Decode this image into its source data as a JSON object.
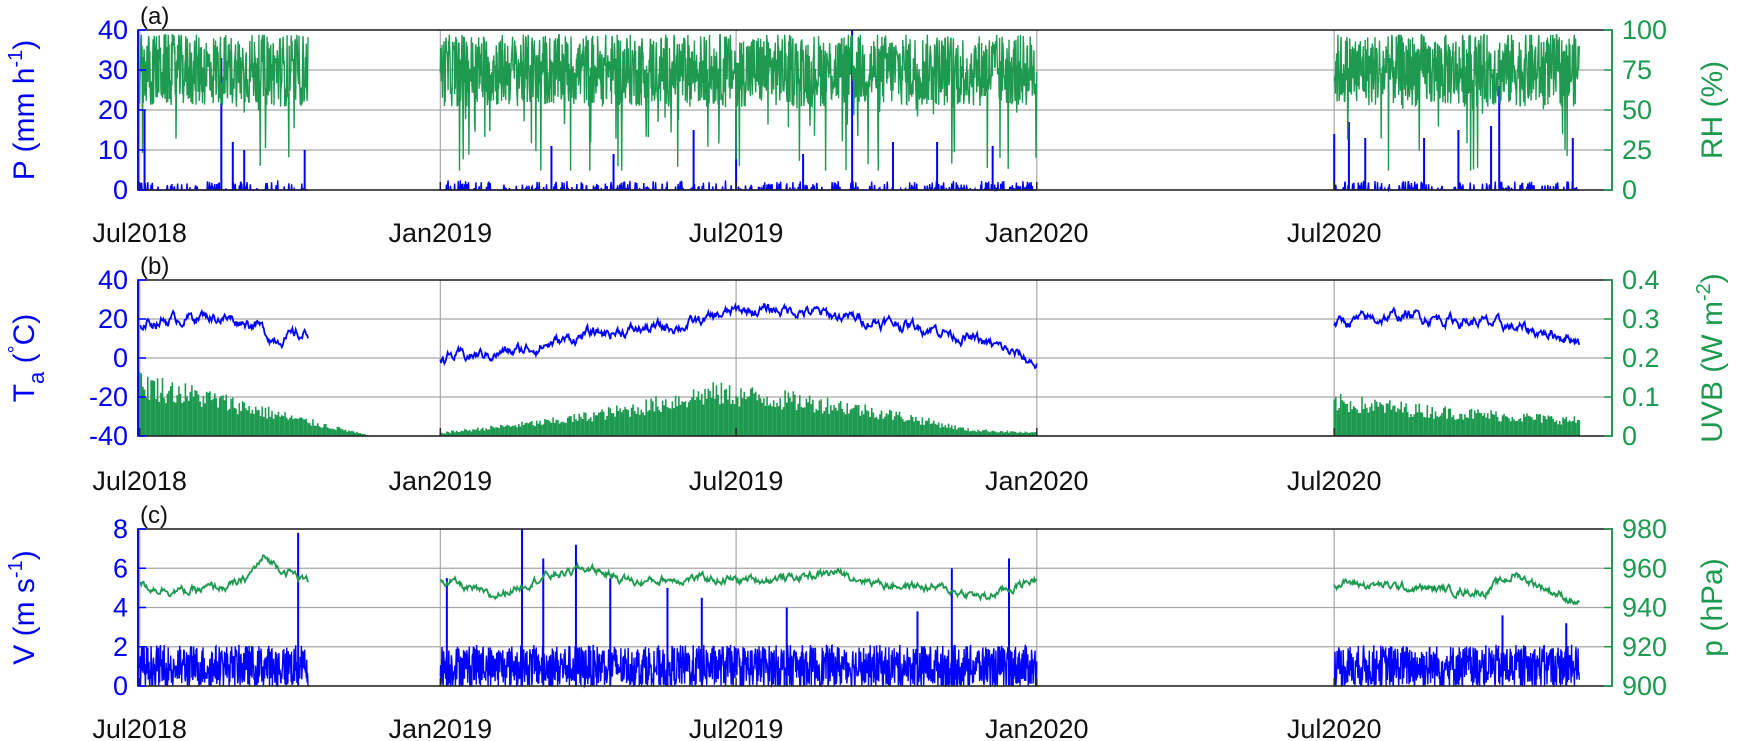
{
  "colors": {
    "left_series": "#0000ff",
    "right_series": "#1e9a50",
    "grid": "#a6a6a6",
    "axes": "#262626"
  },
  "x_axis": {
    "ticks": [
      {
        "date": "2018-07-01",
        "label": "Jul2018"
      },
      {
        "date": "2019-01-01",
        "label": "Jan2019"
      },
      {
        "date": "2019-07-01",
        "label": "Jul2019"
      },
      {
        "date": "2020-01-01",
        "label": "Jan2020"
      },
      {
        "date": "2020-07-01",
        "label": "Jul2020"
      }
    ],
    "range": [
      "2018-06-30",
      "2020-12-18"
    ]
  },
  "chart_data": [
    {
      "type": "line",
      "panel_label": "(a)",
      "grid": true,
      "left_axis": {
        "label_main": "P (mm h",
        "label_sup": "-1",
        "label_end": ")",
        "ylim": [
          0,
          40
        ],
        "ticks": [
          "0",
          "10",
          "20",
          "30",
          "40"
        ]
      },
      "right_axis": {
        "label": "RH (%)",
        "ylim": [
          0,
          100
        ],
        "ticks": [
          "0",
          "25",
          "50",
          "75",
          "100"
        ]
      },
      "data_segments": [
        [
          "2018-07-01",
          "2018-10-12"
        ],
        [
          "2019-01-01",
          "2020-01-01"
        ],
        [
          "2020-07-01",
          "2020-11-28"
        ]
      ],
      "series": [
        {
          "axis": "left",
          "style": "spikes",
          "base": 0.5,
          "variation": 2,
          "spike_peaks": [
            {
              "x": "2018-07-04",
              "y": 20
            },
            {
              "x": "2018-08-20",
              "y": 33
            },
            {
              "x": "2018-08-27",
              "y": 12
            },
            {
              "x": "2018-09-03",
              "y": 10
            },
            {
              "x": "2018-10-10",
              "y": 10
            },
            {
              "x": "2019-03-10",
              "y": 11
            },
            {
              "x": "2019-04-17",
              "y": 9
            },
            {
              "x": "2019-06-05",
              "y": 15
            },
            {
              "x": "2019-07-01",
              "y": 20
            },
            {
              "x": "2019-08-11",
              "y": 9
            },
            {
              "x": "2019-09-10",
              "y": 40
            },
            {
              "x": "2019-10-05",
              "y": 12
            },
            {
              "x": "2019-11-01",
              "y": 12
            },
            {
              "x": "2019-12-05",
              "y": 11
            },
            {
              "x": "2020-07-01",
              "y": 14
            },
            {
              "x": "2020-07-10",
              "y": 17
            },
            {
              "x": "2020-07-20",
              "y": 13
            },
            {
              "x": "2020-08-25",
              "y": 13
            },
            {
              "x": "2020-09-15",
              "y": 15
            },
            {
              "x": "2020-10-05",
              "y": 16
            },
            {
              "x": "2020-10-10",
              "y": 26
            },
            {
              "x": "2020-11-24",
              "y": 13
            }
          ]
        },
        {
          "axis": "right",
          "style": "noisy",
          "base": 75,
          "variation": 23,
          "min": 12,
          "max": 97
        }
      ]
    },
    {
      "type": "line",
      "panel_label": "(b)",
      "grid": true,
      "left_axis": {
        "label_main": "T",
        "label_sub": "a",
        "label_end": " (",
        "label_deg": "°",
        "label_unit": "C)",
        "ylim": [
          -40,
          40
        ],
        "ticks": [
          "-40",
          "-20",
          "0",
          "20",
          "40"
        ]
      },
      "right_axis": {
        "label_main": "UVB (W m",
        "label_sup": "-2",
        "label_end": ")",
        "ylim": [
          0,
          0.4
        ],
        "ticks": [
          "0",
          "0.1",
          "0.2",
          "0.3",
          "0.4"
        ]
      },
      "series": [
        {
          "axis": "left",
          "style": "seasonal",
          "segments": [
            {
              "start": "2018-07-01",
              "end": "2018-10-12",
              "points": [
                [
                  "2018-07-01",
                  18
                ],
                [
                  "2018-08-10",
                  22
                ],
                [
                  "2018-09-10",
                  18
                ],
                [
                  "2018-09-20",
                  10
                ],
                [
                  "2018-10-12",
                  12
                ]
              ]
            },
            {
              "start": "2019-01-01",
              "end": "2020-01-01",
              "points": [
                [
                  "2019-01-01",
                  0
                ],
                [
                  "2019-02-15",
                  3
                ],
                [
                  "2019-04-01",
                  12
                ],
                [
                  "2019-06-01",
                  17
                ],
                [
                  "2019-07-01",
                  24
                ],
                [
                  "2019-08-01",
                  25
                ],
                [
                  "2019-09-15",
                  20
                ],
                [
                  "2019-11-01",
                  15
                ],
                [
                  "2019-12-10",
                  5
                ],
                [
                  "2020-01-01",
                  -3
                ]
              ]
            },
            {
              "start": "2020-07-01",
              "end": "2020-11-28",
              "points": [
                [
                  "2020-07-01",
                  18
                ],
                [
                  "2020-08-15",
                  22
                ],
                [
                  "2020-10-01",
                  18
                ],
                [
                  "2020-11-28",
                  10
                ]
              ]
            }
          ],
          "variation": 4
        },
        {
          "axis": "right",
          "style": "daily-peaks",
          "segments": [
            {
              "start": "2018-07-01",
              "end": "2018-11-20",
              "points": [
                [
                  "2018-07-01",
                  0.17
                ],
                [
                  "2018-08-15",
                  0.12
                ],
                [
                  "2018-10-01",
                  0.06
                ],
                [
                  "2018-11-20",
                  0.0
                ]
              ]
            },
            {
              "start": "2019-01-01",
              "end": "2020-01-01",
              "points": [
                [
                  "2019-01-01",
                  0.01
                ],
                [
                  "2019-03-15",
                  0.05
                ],
                [
                  "2019-05-01",
                  0.09
                ],
                [
                  "2019-06-15",
                  0.14
                ],
                [
                  "2019-07-10",
                  0.13
                ],
                [
                  "2019-09-01",
                  0.1
                ],
                [
                  "2019-10-15",
                  0.06
                ],
                [
                  "2019-11-20",
                  0.02
                ],
                [
                  "2020-01-01",
                  0.01
                ]
              ]
            },
            {
              "start": "2020-07-01",
              "end": "2020-11-28",
              "points": [
                [
                  "2020-07-01",
                  0.11
                ],
                [
                  "2020-09-01",
                  0.08
                ],
                [
                  "2020-11-28",
                  0.05
                ]
              ]
            }
          ]
        }
      ]
    },
    {
      "type": "line",
      "panel_label": "(c)",
      "grid": true,
      "left_axis": {
        "label_main": "V (m s",
        "label_sup": "-1",
        "label_end": ")",
        "ylim": [
          0,
          8
        ],
        "ticks": [
          "0",
          "2",
          "4",
          "6",
          "8"
        ]
      },
      "right_axis": {
        "label": "p (hPa)",
        "ylim": [
          900,
          980
        ],
        "ticks": [
          "900",
          "920",
          "940",
          "960",
          "980"
        ]
      },
      "data_segments": [
        [
          "2018-07-01",
          "2018-10-12"
        ],
        [
          "2019-01-01",
          "2020-01-01"
        ],
        [
          "2020-07-01",
          "2020-11-28"
        ]
      ],
      "series": [
        {
          "axis": "left",
          "style": "noisy",
          "base": 1.0,
          "variation": 1.1,
          "min": 0,
          "max": 8,
          "bursts": [
            {
              "x": "2018-10-06",
              "y": 7.8
            },
            {
              "x": "2019-01-05",
              "y": 5.5
            },
            {
              "x": "2019-02-20",
              "y": 8
            },
            {
              "x": "2019-03-05",
              "y": 6.5
            },
            {
              "x": "2019-03-25",
              "y": 7.2
            },
            {
              "x": "2019-04-15",
              "y": 5.5
            },
            {
              "x": "2019-05-20",
              "y": 5.0
            },
            {
              "x": "2019-06-10",
              "y": 4.5
            },
            {
              "x": "2019-08-01",
              "y": 4
            },
            {
              "x": "2019-10-20",
              "y": 3.8
            },
            {
              "x": "2019-11-10",
              "y": 6.0
            },
            {
              "x": "2019-12-15",
              "y": 6.5
            },
            {
              "x": "2020-10-12",
              "y": 3.6
            },
            {
              "x": "2020-11-20",
              "y": 3.2
            }
          ]
        },
        {
          "axis": "right",
          "style": "smooth",
          "segments": [
            {
              "start": "2018-07-01",
              "end": "2018-10-12",
              "points": [
                [
                  "2018-07-01",
                  951
                ],
                [
                  "2018-08-01",
                  948
                ],
                [
                  "2018-09-01",
                  952
                ],
                [
                  "2018-09-15",
                  965
                ],
                [
                  "2018-10-12",
                  953
                ]
              ]
            },
            {
              "start": "2019-01-01",
              "end": "2020-01-01",
              "points": [
                [
                  "2019-01-01",
                  955
                ],
                [
                  "2019-02-01",
                  945
                ],
                [
                  "2019-03-01",
                  955
                ],
                [
                  "2019-04-01",
                  960
                ],
                [
                  "2019-05-01",
                  953
                ],
                [
                  "2019-06-01",
                  955
                ],
                [
                  "2019-07-01",
                  954
                ],
                [
                  "2019-08-01",
                  955
                ],
                [
                  "2019-09-01",
                  958
                ],
                [
                  "2019-10-01",
                  952
                ],
                [
                  "2019-11-01",
                  950
                ],
                [
                  "2019-12-01",
                  945
                ],
                [
                  "2020-01-01",
                  955
                ]
              ]
            },
            {
              "start": "2020-07-01",
              "end": "2020-11-28",
              "points": [
                [
                  "2020-07-01",
                  953
                ],
                [
                  "2020-08-15",
                  950
                ],
                [
                  "2020-10-01",
                  948
                ],
                [
                  "2020-10-20",
                  957
                ],
                [
                  "2020-11-28",
                  942
                ]
              ]
            }
          ],
          "variation": 3
        }
      ]
    }
  ]
}
